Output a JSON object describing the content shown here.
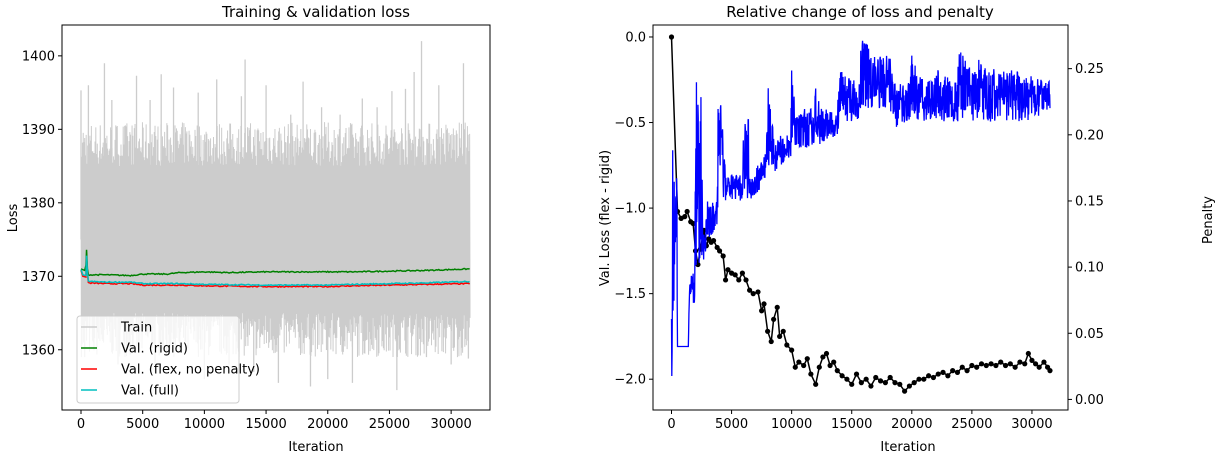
{
  "chart_data": [
    {
      "type": "line",
      "title": "Training & validation loss",
      "xlabel": "Iteration",
      "ylabel": "Loss",
      "xlim": [
        -1540,
        33150
      ],
      "ylim": [
        1351.8,
        1404.2
      ],
      "xticks": [
        0,
        5000,
        10000,
        15000,
        20000,
        25000,
        30000
      ],
      "xtick_labels": [
        "0",
        "5000",
        "10000",
        "15000",
        "20000",
        "25000",
        "30000"
      ],
      "yticks": [
        1360,
        1370,
        1380,
        1390,
        1400
      ],
      "ytick_labels": [
        "1360",
        "1370",
        "1380",
        "1390",
        "1400"
      ],
      "grid": false,
      "legend_position": "lower-left",
      "legend": [
        "Train",
        "Val. (rigid)",
        "Val. (flex, no penalty)",
        "Val. (full)"
      ],
      "series": [
        {
          "name": "Train",
          "color": "#cccccc",
          "kind": "noisy-band",
          "band_low": 1362,
          "band_high": 1388,
          "spikes": [
            [
              0,
              1395.3
            ],
            [
              300,
              1359
            ],
            [
              600,
              1396
            ],
            [
              1000,
              1361
            ],
            [
              1900,
              1399
            ],
            [
              2500,
              1394
            ],
            [
              3000,
              1358
            ],
            [
              4500,
              1397.3
            ],
            [
              5600,
              1394
            ],
            [
              6000,
              1357
            ],
            [
              6500,
              1397.5
            ],
            [
              7500,
              1395.7
            ],
            [
              8000,
              1360
            ],
            [
              9500,
              1395
            ],
            [
              10000,
              1356
            ],
            [
              11000,
              1396.8
            ],
            [
              12000,
              1358
            ],
            [
              13000,
              1394.5
            ],
            [
              13300,
              1399.5
            ],
            [
              14000,
              1357
            ],
            [
              15000,
              1396
            ],
            [
              16000,
              1355.5
            ],
            [
              17000,
              1392
            ],
            [
              18000,
              1396.5
            ],
            [
              18600,
              1355
            ],
            [
              19500,
              1393
            ],
            [
              20000,
              1356
            ],
            [
              21000,
              1392
            ],
            [
              22000,
              1355.5
            ],
            [
              22800,
              1394.2
            ],
            [
              24000,
              1393
            ],
            [
              25200,
              1395.2
            ],
            [
              25600,
              1354.5
            ],
            [
              26300,
              1395.5
            ],
            [
              27000,
              1397.8
            ],
            [
              27600,
              1402
            ],
            [
              28000,
              1359
            ],
            [
              29000,
              1396
            ],
            [
              30000,
              1358
            ],
            [
              31000,
              1399
            ],
            [
              31400,
              1358.8
            ]
          ]
        },
        {
          "name": "Val. (rigid)",
          "color": "#008000",
          "x": [
            0,
            300,
            400,
            450,
            520,
            600,
            2000,
            4000,
            5000,
            7000,
            8000,
            10000,
            12000,
            15000,
            18000,
            20000,
            22000,
            25000,
            28000,
            31500
          ],
          "y": [
            1371.0,
            1370.8,
            1371.5,
            1373.6,
            1371.0,
            1370.2,
            1370.2,
            1370.1,
            1370.3,
            1370.3,
            1370.5,
            1370.6,
            1370.5,
            1370.6,
            1370.6,
            1370.6,
            1370.6,
            1370.7,
            1370.8,
            1371.0
          ]
        },
        {
          "name": "Val. (flex, no penalty)",
          "color": "#ff0000",
          "x": [
            0,
            150,
            400,
            450,
            520,
            600,
            2000,
            4000,
            5000,
            8000,
            10000,
            15000,
            18000,
            20000,
            22000,
            25000,
            28000,
            31500
          ],
          "y": [
            1370.8,
            1370.0,
            1369.9,
            1372.5,
            1370.5,
            1369.1,
            1369.0,
            1369.0,
            1368.8,
            1368.8,
            1368.7,
            1368.6,
            1368.6,
            1368.6,
            1368.7,
            1368.8,
            1368.9,
            1369.0
          ]
        },
        {
          "name": "Val. (full)",
          "color": "#00bfbf",
          "x": [
            0,
            150,
            400,
            450,
            520,
            600,
            2000,
            4000,
            5000,
            8000,
            10000,
            15000,
            18000,
            20000,
            22000,
            25000,
            28000,
            31500
          ],
          "y": [
            1370.9,
            1370.2,
            1370.1,
            1372.8,
            1370.6,
            1369.3,
            1369.2,
            1369.2,
            1369.0,
            1369.0,
            1368.9,
            1368.8,
            1368.8,
            1368.8,
            1368.9,
            1369.0,
            1369.1,
            1369.3
          ]
        }
      ]
    },
    {
      "type": "line",
      "title": "Relative change of loss and penalty",
      "xlabel": "Iteration",
      "ylabel": "Val. Loss (flex - rigid)",
      "ylabel_right": "Penalty",
      "ylabel_right_color": "#0000ff",
      "xlim": [
        -1540,
        33000
      ],
      "ylim": [
        -2.18,
        0.07
      ],
      "ylim_right": [
        -0.008,
        0.283
      ],
      "xticks": [
        0,
        5000,
        10000,
        15000,
        20000,
        25000,
        30000
      ],
      "xtick_labels": [
        "0",
        "5000",
        "10000",
        "15000",
        "20000",
        "25000",
        "30000"
      ],
      "yticks": [
        -2.0,
        -1.5,
        -1.0,
        -0.5,
        0.0
      ],
      "ytick_labels": [
        "−2.0",
        "−1.5",
        "−1.0",
        "−0.5",
        "0.0"
      ],
      "yticks_right": [
        0.0,
        0.05,
        0.1,
        0.15,
        0.2,
        0.25
      ],
      "ytick_right_labels": [
        "0.00",
        "0.05",
        "0.10",
        "0.15",
        "0.20",
        "0.25"
      ],
      "grid": false,
      "series": [
        {
          "name": "Val. Loss (flex - rigid)",
          "color": "#000000",
          "axis": "left",
          "marker": "dot",
          "x": [
            0,
            500,
            800,
            1100,
            1300,
            1600,
            1800,
            2000,
            2200,
            2400,
            2700,
            2900,
            3100,
            3300,
            3500,
            3800,
            4000,
            4300,
            4500,
            4700,
            5000,
            5300,
            5600,
            5900,
            6200,
            6500,
            6800,
            7200,
            7500,
            7700,
            8000,
            8300,
            8500,
            8800,
            9000,
            9300,
            9600,
            10000,
            10300,
            10600,
            11000,
            11300,
            11600,
            12000,
            12300,
            12600,
            12900,
            13200,
            13500,
            13800,
            14200,
            14600,
            15000,
            15400,
            15800,
            16200,
            16600,
            17000,
            17400,
            17800,
            18200,
            18600,
            19000,
            19400,
            19800,
            20200,
            20600,
            21000,
            21400,
            21800,
            22200,
            22600,
            23000,
            23400,
            23800,
            24200,
            24600,
            25000,
            25400,
            25800,
            26200,
            26600,
            27000,
            27400,
            27800,
            28200,
            28600,
            29000,
            29400,
            29700,
            30000,
            30300,
            30600,
            31000,
            31300,
            31500
          ],
          "y": [
            0.0,
            -1.02,
            -1.06,
            -1.05,
            -1.02,
            -1.08,
            -1.09,
            -1.25,
            -1.33,
            -1.24,
            -1.13,
            -1.22,
            -1.18,
            -1.2,
            -1.19,
            -1.23,
            -1.25,
            -1.28,
            -1.42,
            -1.36,
            -1.38,
            -1.39,
            -1.42,
            -1.38,
            -1.42,
            -1.48,
            -1.5,
            -1.49,
            -1.6,
            -1.56,
            -1.72,
            -1.78,
            -1.65,
            -1.58,
            -1.75,
            -1.72,
            -1.8,
            -1.83,
            -1.93,
            -1.9,
            -1.92,
            -1.88,
            -1.97,
            -2.03,
            -1.93,
            -1.87,
            -1.85,
            -1.92,
            -1.9,
            -1.95,
            -1.98,
            -2.0,
            -2.03,
            -1.97,
            -2.02,
            -2.0,
            -2.04,
            -1.99,
            -2.01,
            -2.02,
            -1.99,
            -2.02,
            -2.03,
            -2.07,
            -2.04,
            -2.02,
            -2.0,
            -2.0,
            -1.98,
            -1.99,
            -1.97,
            -1.96,
            -1.98,
            -1.95,
            -1.96,
            -1.93,
            -1.95,
            -1.92,
            -1.93,
            -1.91,
            -1.92,
            -1.91,
            -1.92,
            -1.9,
            -1.92,
            -1.91,
            -1.93,
            -1.9,
            -1.91,
            -1.85,
            -1.89,
            -1.91,
            -1.93,
            -1.9,
            -1.93,
            -1.95
          ]
        },
        {
          "name": "Penalty",
          "color": "#0000ff",
          "axis": "right",
          "kind": "noisy-band",
          "x": [
            0,
            150,
            300,
            450,
            500,
            1400,
            1500,
            1900,
            2000,
            2500,
            2600,
            3000,
            3800,
            3900,
            4300,
            4500,
            5900,
            6000,
            6400,
            6500,
            7500,
            7900,
            8000,
            8500,
            9500,
            9900,
            10000,
            10500,
            11900,
            12000,
            12500,
            13800,
            14000,
            15500,
            15800,
            17000,
            18200,
            18500,
            19800,
            20000,
            21000,
            22000,
            23500,
            24000,
            25000,
            26000,
            27000,
            28000,
            30000,
            31500
          ],
          "lo": [
            0.008,
            0.06,
            0.1,
            0.1,
            0.04,
            0.04,
            0.08,
            0.07,
            0.1,
            0.1,
            0.1,
            0.12,
            0.13,
            0.15,
            0.15,
            0.15,
            0.15,
            0.16,
            0.15,
            0.15,
            0.16,
            0.17,
            0.17,
            0.17,
            0.18,
            0.18,
            0.19,
            0.19,
            0.19,
            0.2,
            0.19,
            0.2,
            0.21,
            0.21,
            0.22,
            0.22,
            0.22,
            0.205,
            0.21,
            0.21,
            0.21,
            0.21,
            0.21,
            0.21,
            0.21,
            0.21,
            0.21,
            0.21,
            0.21,
            0.22
          ],
          "hi": [
            0.15,
            0.21,
            0.18,
            0.17,
            0.04,
            0.04,
            0.09,
            0.1,
            0.24,
            0.245,
            0.12,
            0.15,
            0.15,
            0.25,
            0.2,
            0.17,
            0.17,
            0.22,
            0.22,
            0.17,
            0.18,
            0.19,
            0.24,
            0.2,
            0.2,
            0.2,
            0.25,
            0.22,
            0.22,
            0.24,
            0.22,
            0.22,
            0.25,
            0.24,
            0.275,
            0.26,
            0.26,
            0.24,
            0.24,
            0.262,
            0.24,
            0.25,
            0.24,
            0.265,
            0.25,
            0.265,
            0.25,
            0.25,
            0.245,
            0.24
          ]
        }
      ]
    }
  ]
}
